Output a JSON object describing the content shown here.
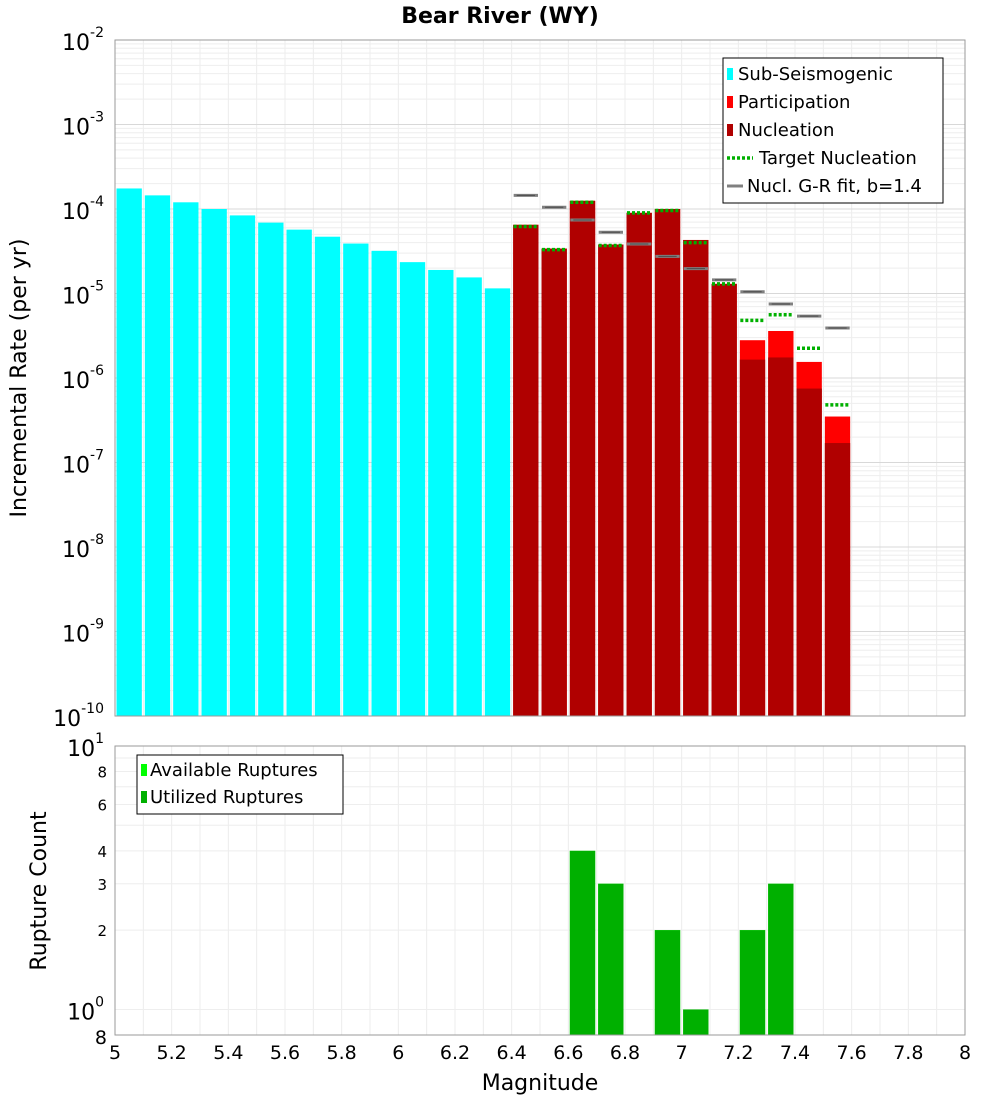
{
  "chart_data": [
    {
      "type": "bar",
      "title": "Bear River (WY)",
      "xlabel": "Magnitude",
      "ylabel": "Incremental Rate (per yr)",
      "yscale": "log",
      "xlim": [
        5,
        8
      ],
      "ylim": [
        1e-10,
        0.01
      ],
      "bin_width": 0.1,
      "colors": {
        "sub_seismogenic": "#00ffff",
        "participation": "#ff0000",
        "nucleation": "#b00000",
        "target_nucleation": "#00b000",
        "gr_fit": "#808080",
        "gr_fit_inner": "#202020"
      },
      "legend": [
        {
          "key": "sub_seismogenic",
          "label": "Sub-Seismogenic",
          "style": "bar"
        },
        {
          "key": "participation",
          "label": "Participation",
          "style": "bar"
        },
        {
          "key": "nucleation",
          "label": "Nucleation",
          "style": "bar"
        },
        {
          "key": "target_nucleation",
          "label": "Target Nucleation",
          "style": "dotted"
        },
        {
          "key": "gr_fit",
          "label": "Nucl. G-R fit, b=1.4",
          "style": "line"
        }
      ],
      "series": [
        {
          "name": "Sub-Seismogenic",
          "key": "sub_seismogenic",
          "x": [
            5.05,
            5.15,
            5.25,
            5.35,
            5.45,
            5.55,
            5.65,
            5.75,
            5.85,
            5.95,
            6.05,
            6.15,
            6.25,
            6.35
          ],
          "values": [
            0.000175,
            0.000145,
            0.00012,
            0.0001,
            8.4e-05,
            6.9e-05,
            5.7e-05,
            4.7e-05,
            3.9e-05,
            3.2e-05,
            2.35e-05,
            1.9e-05,
            1.55e-05,
            1.15e-05
          ]
        },
        {
          "name": "Participation",
          "key": "participation",
          "x": [
            6.45,
            6.55,
            6.65,
            6.75,
            6.85,
            6.95,
            7.05,
            7.15,
            7.25,
            7.35,
            7.45,
            7.55
          ],
          "values": [
            6.5e-05,
            3.4e-05,
            0.000125,
            3.8e-05,
            9e-05,
            0.0001,
            4.3e-05,
            1.3e-05,
            2.8e-06,
            3.6e-06,
            1.55e-06,
            3.5e-07
          ]
        },
        {
          "name": "Nucleation",
          "key": "nucleation",
          "x": [
            6.45,
            6.55,
            6.65,
            6.75,
            6.85,
            6.95,
            7.05,
            7.15,
            7.25,
            7.35,
            7.45,
            7.55
          ],
          "values": [
            6.5e-05,
            3.4e-05,
            0.000125,
            3.8e-05,
            9e-05,
            0.0001,
            4.3e-05,
            1.3e-05,
            1.65e-06,
            1.75e-06,
            7.5e-07,
            1.7e-07
          ]
        },
        {
          "name": "Target Nucleation",
          "key": "target_nucleation",
          "x": [
            6.45,
            6.55,
            6.65,
            6.75,
            6.85,
            6.95,
            7.05,
            7.15,
            7.25,
            7.35,
            7.45,
            7.55
          ],
          "values": [
            6.2e-05,
            3.3e-05,
            0.00012,
            3.7e-05,
            9e-05,
            9.6e-05,
            4e-05,
            1.3e-05,
            4.8e-06,
            5.6e-06,
            2.25e-06,
            4.8e-07
          ]
        },
        {
          "name": "Nucl. G-R fit, b=1.4",
          "key": "gr_fit",
          "x": [
            6.45,
            6.55,
            6.65,
            6.75,
            6.85,
            6.95,
            7.05,
            7.15,
            7.25,
            7.35,
            7.45,
            7.55
          ],
          "values": [
            0.000145,
            0.000105,
            7.4e-05,
            5.3e-05,
            3.85e-05,
            2.75e-05,
            1.97e-05,
            1.45e-05,
            1.05e-05,
            7.5e-06,
            5.4e-06,
            3.9e-06
          ]
        }
      ],
      "xticks": [
        5,
        5.2,
        5.4,
        5.6,
        5.8,
        6,
        6.2,
        6.4,
        6.6,
        6.8,
        7,
        7.2,
        7.4,
        7.6,
        7.8,
        8
      ],
      "xtick_labels": [
        "5",
        "5.2",
        "5.4",
        "5.6",
        "5.8",
        "6",
        "6.2",
        "6.4",
        "6.6",
        "6.8",
        "7",
        "7.2",
        "7.4",
        "7.6",
        "7.8",
        "8"
      ],
      "ytick_exponents": [
        -10,
        -9,
        -8,
        -7,
        -6,
        -5,
        -4,
        -3,
        -2
      ],
      "ytick_base": "10",
      "ytick_exp_labels": [
        "-10",
        "-9",
        "-8",
        "-7",
        "-6",
        "-5",
        "-4",
        "-3",
        "-2"
      ]
    },
    {
      "type": "bar",
      "xlabel": "Magnitude",
      "ylabel": "Rupture Count",
      "yscale": "log",
      "xlim": [
        5,
        8
      ],
      "ylim": [
        0.8,
        10
      ],
      "bin_width": 0.1,
      "colors": {
        "available": "#00ff00",
        "utilized": "#00b000"
      },
      "legend": [
        {
          "key": "available",
          "label": "Available Ruptures"
        },
        {
          "key": "utilized",
          "label": "Utilized Ruptures"
        }
      ],
      "series": [
        {
          "name": "Available Ruptures",
          "key": "available",
          "x": [
            6.65,
            6.75,
            6.95,
            7.05,
            7.25,
            7.35
          ],
          "values": [
            4,
            3,
            2,
            1,
            2,
            3
          ]
        },
        {
          "name": "Utilized Ruptures",
          "key": "utilized",
          "x": [
            6.65,
            6.75,
            6.95,
            7.05,
            7.25,
            7.35
          ],
          "values": [
            4,
            3,
            2,
            1,
            2,
            3
          ]
        }
      ],
      "yticks_minor": [
        2,
        3,
        4,
        6,
        8
      ],
      "yticks_minor_labels": [
        "2",
        "3",
        "4",
        "6",
        "8"
      ],
      "ytick_bottom_label": "8",
      "ytick_majors": [
        {
          "value": 1,
          "base": "10",
          "exp": "0"
        },
        {
          "value": 10,
          "base": "10",
          "exp": "1"
        }
      ]
    }
  ]
}
